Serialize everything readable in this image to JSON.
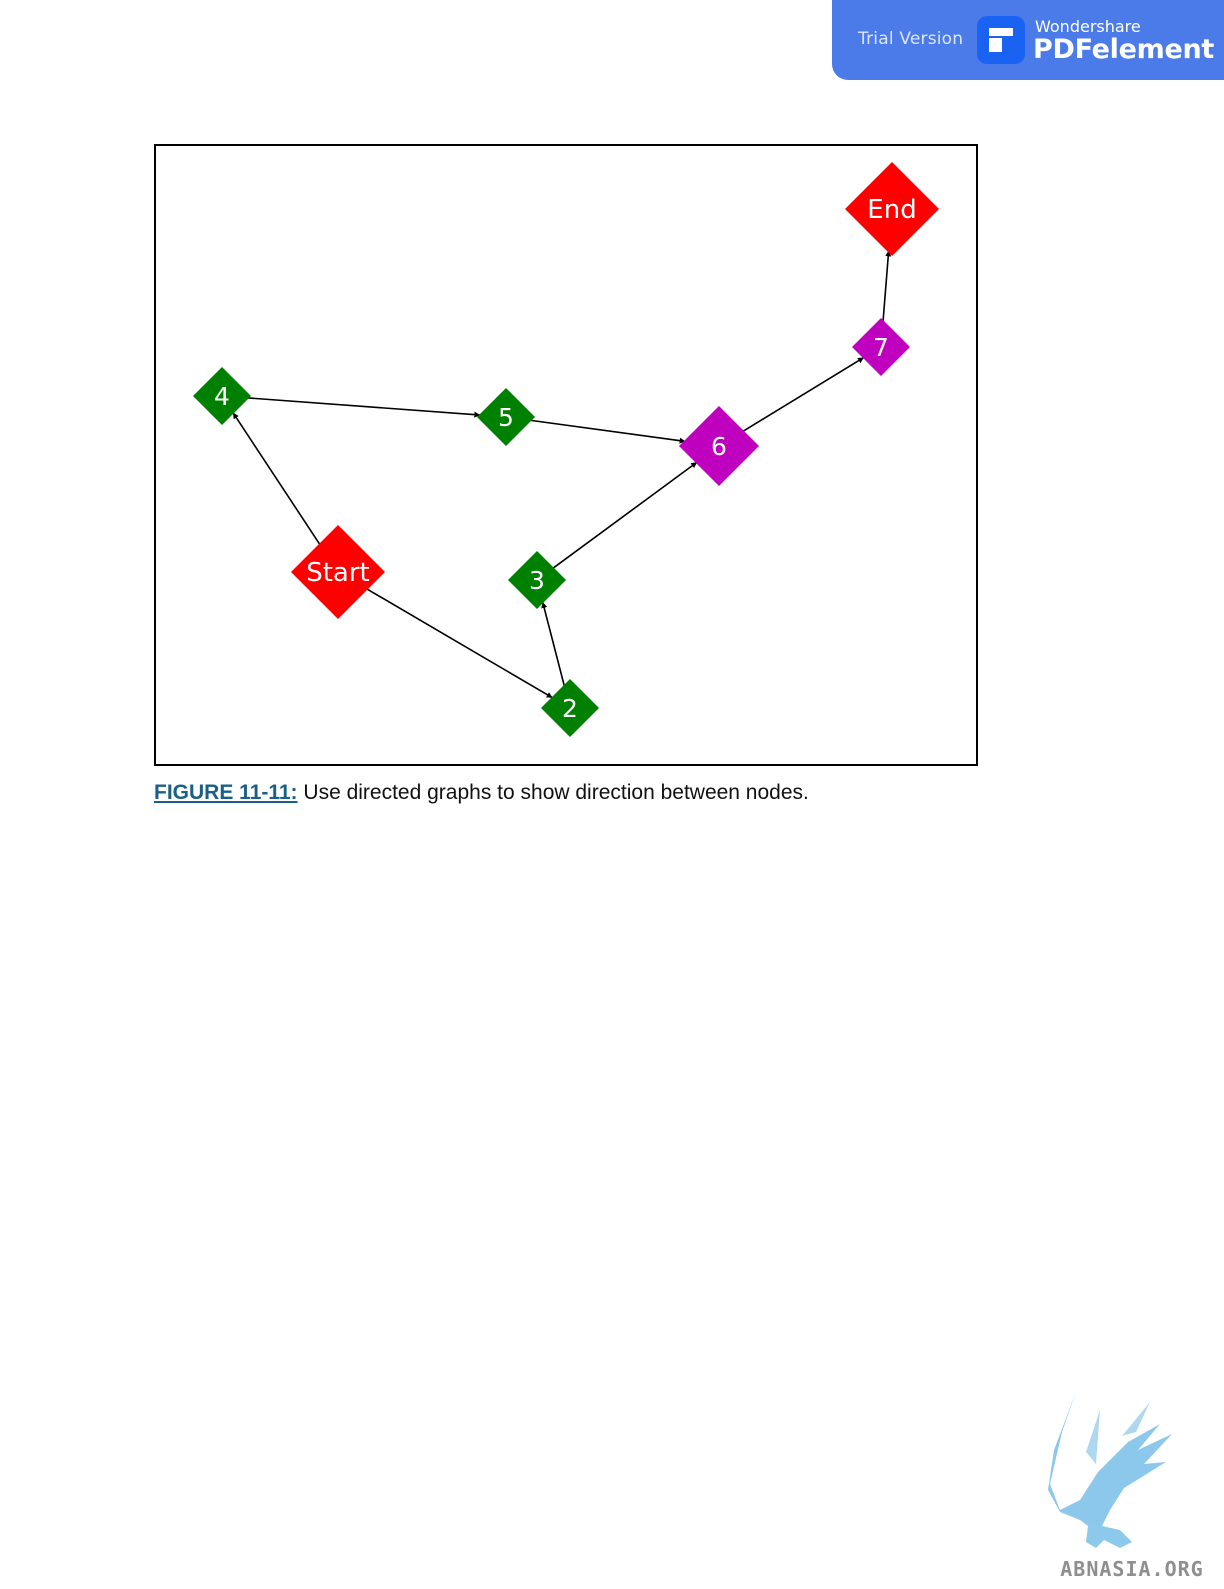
{
  "banner": {
    "trial_text": "Trial Version",
    "brand_small": "Wondershare",
    "brand_large": "PDFelement",
    "color": "#4b7be8"
  },
  "figure": {
    "caption_label": "FIGURE 11-11:",
    "caption_text": " Use directed graphs to show direction between nodes.",
    "graph": {
      "nodes": [
        {
          "id": "Start",
          "label": "Start",
          "color": "#ff0000"
        },
        {
          "id": "2",
          "label": "2",
          "color": "#008000"
        },
        {
          "id": "3",
          "label": "3",
          "color": "#008000"
        },
        {
          "id": "4",
          "label": "4",
          "color": "#008000"
        },
        {
          "id": "5",
          "label": "5",
          "color": "#008000"
        },
        {
          "id": "6",
          "label": "6",
          "color": "#bf00bf"
        },
        {
          "id": "7",
          "label": "7",
          "color": "#bf00bf"
        },
        {
          "id": "End",
          "label": "End",
          "color": "#ff0000"
        }
      ],
      "edges": [
        {
          "from": "Start",
          "to": "4"
        },
        {
          "from": "Start",
          "to": "2"
        },
        {
          "from": "2",
          "to": "3"
        },
        {
          "from": "3",
          "to": "6"
        },
        {
          "from": "4",
          "to": "5"
        },
        {
          "from": "5",
          "to": "6"
        },
        {
          "from": "6",
          "to": "7"
        },
        {
          "from": "7",
          "to": "End"
        }
      ]
    }
  },
  "watermark": {
    "text": "ABNASIA.ORG",
    "color": "#86c6ea"
  }
}
